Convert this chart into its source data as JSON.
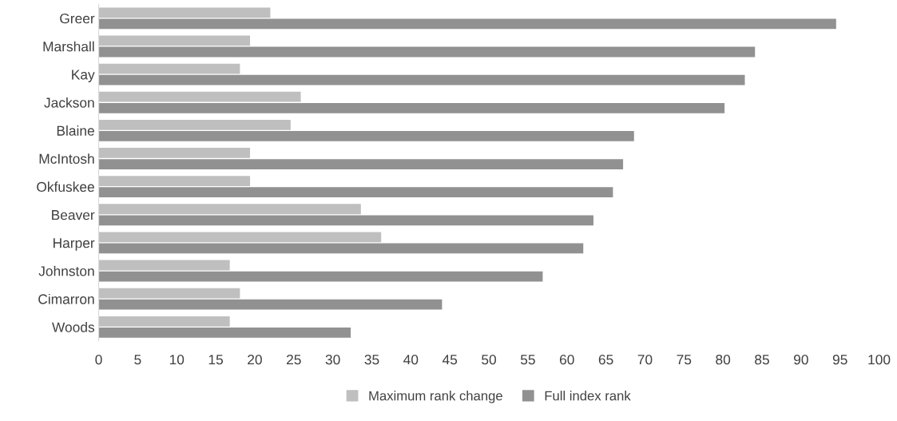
{
  "chart_data": {
    "type": "bar",
    "orientation": "horizontal",
    "categories": [
      "Greer",
      "Marshall",
      "Kay",
      "Jackson",
      "Blaine",
      "McIntosh",
      "Okfuskee",
      "Beaver",
      "Harper",
      "Johnston",
      "Cimarron",
      "Woods"
    ],
    "series": [
      {
        "name": "Maximum rank change",
        "color": "#bfbfbf",
        "values": [
          22.0,
          19.4,
          18.1,
          25.9,
          24.6,
          19.4,
          19.4,
          33.6,
          36.2,
          16.8,
          18.1,
          16.8
        ]
      },
      {
        "name": "Full index rank",
        "color": "#919191",
        "values": [
          94.5,
          84.1,
          82.8,
          80.2,
          68.6,
          67.2,
          65.9,
          63.4,
          62.1,
          56.9,
          44.0,
          32.3
        ]
      }
    ],
    "xlim": [
      0,
      100
    ],
    "xticks": [
      0,
      5,
      10,
      15,
      20,
      25,
      30,
      35,
      40,
      45,
      50,
      55,
      60,
      65,
      70,
      75,
      80,
      85,
      90,
      95,
      100
    ],
    "grid": false,
    "legend": "bottom"
  }
}
